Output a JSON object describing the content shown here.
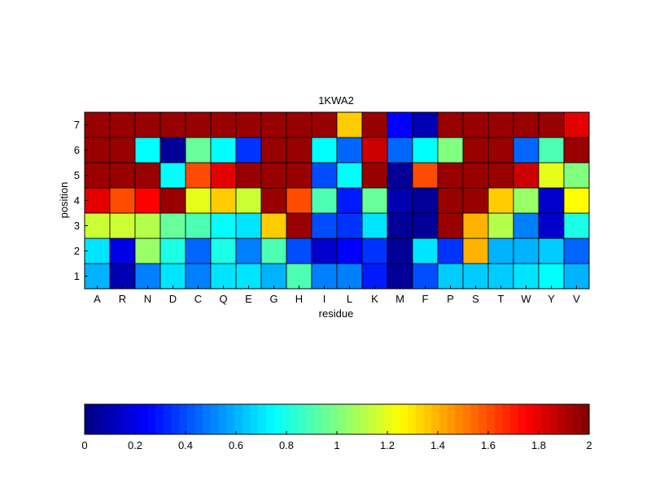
{
  "chart_data": {
    "type": "heatmap",
    "title": "1KWA2",
    "xlabel": "residue",
    "ylabel": "position",
    "x_categories": [
      "A",
      "R",
      "N",
      "D",
      "C",
      "Q",
      "E",
      "G",
      "H",
      "I",
      "L",
      "K",
      "M",
      "F",
      "P",
      "S",
      "T",
      "W",
      "Y",
      "V"
    ],
    "y_categories": [
      "1",
      "2",
      "3",
      "4",
      "5",
      "6",
      "7"
    ],
    "values": [
      [
        0.6,
        0.1,
        0.5,
        0.7,
        0.5,
        0.7,
        0.7,
        0.6,
        0.9,
        0.5,
        0.5,
        0.3,
        0.05,
        0.4,
        0.65,
        0.65,
        0.65,
        0.7,
        0.75,
        0.6
      ],
      [
        0.7,
        0.2,
        1.05,
        0.8,
        0.45,
        0.8,
        0.5,
        0.9,
        0.4,
        0.15,
        0.25,
        0.35,
        0.05,
        0.7,
        0.35,
        1.4,
        0.6,
        0.6,
        0.65,
        0.45
      ],
      [
        1.15,
        1.15,
        1.1,
        0.95,
        0.9,
        0.75,
        0.7,
        1.35,
        1.95,
        0.4,
        0.35,
        0.7,
        0.05,
        0.05,
        1.95,
        1.4,
        1.1,
        0.5,
        0.15,
        0.8
      ],
      [
        1.8,
        1.6,
        1.75,
        1.95,
        1.2,
        1.35,
        1.15,
        1.95,
        1.6,
        0.9,
        0.3,
        0.95,
        0.1,
        0.05,
        1.95,
        1.95,
        1.35,
        1.05,
        0.15,
        1.25
      ],
      [
        1.95,
        1.95,
        1.95,
        0.75,
        1.6,
        1.8,
        1.95,
        1.95,
        1.95,
        0.4,
        0.75,
        1.95,
        0.05,
        1.6,
        1.95,
        1.95,
        1.95,
        1.85,
        1.2,
        1.0
      ],
      [
        1.95,
        1.95,
        0.75,
        0.05,
        0.95,
        0.75,
        0.35,
        1.95,
        1.95,
        0.75,
        0.45,
        1.85,
        0.45,
        0.75,
        1.0,
        1.95,
        1.95,
        0.45,
        0.9,
        1.95
      ],
      [
        1.95,
        1.95,
        1.95,
        1.95,
        1.95,
        1.95,
        1.95,
        1.95,
        1.95,
        1.95,
        1.35,
        1.95,
        0.25,
        0.1,
        1.95,
        1.95,
        1.95,
        1.95,
        1.95,
        1.8
      ]
    ],
    "colormap": "jet",
    "colorbar": {
      "range": [
        0,
        2
      ],
      "ticks": [
        "0",
        "0.2",
        "0.4",
        "0.6",
        "0.8",
        "1",
        "1.2",
        "1.4",
        "1.6",
        "1.8",
        "2"
      ],
      "orientation": "horizontal",
      "placement": "bottom"
    },
    "grid": false
  }
}
